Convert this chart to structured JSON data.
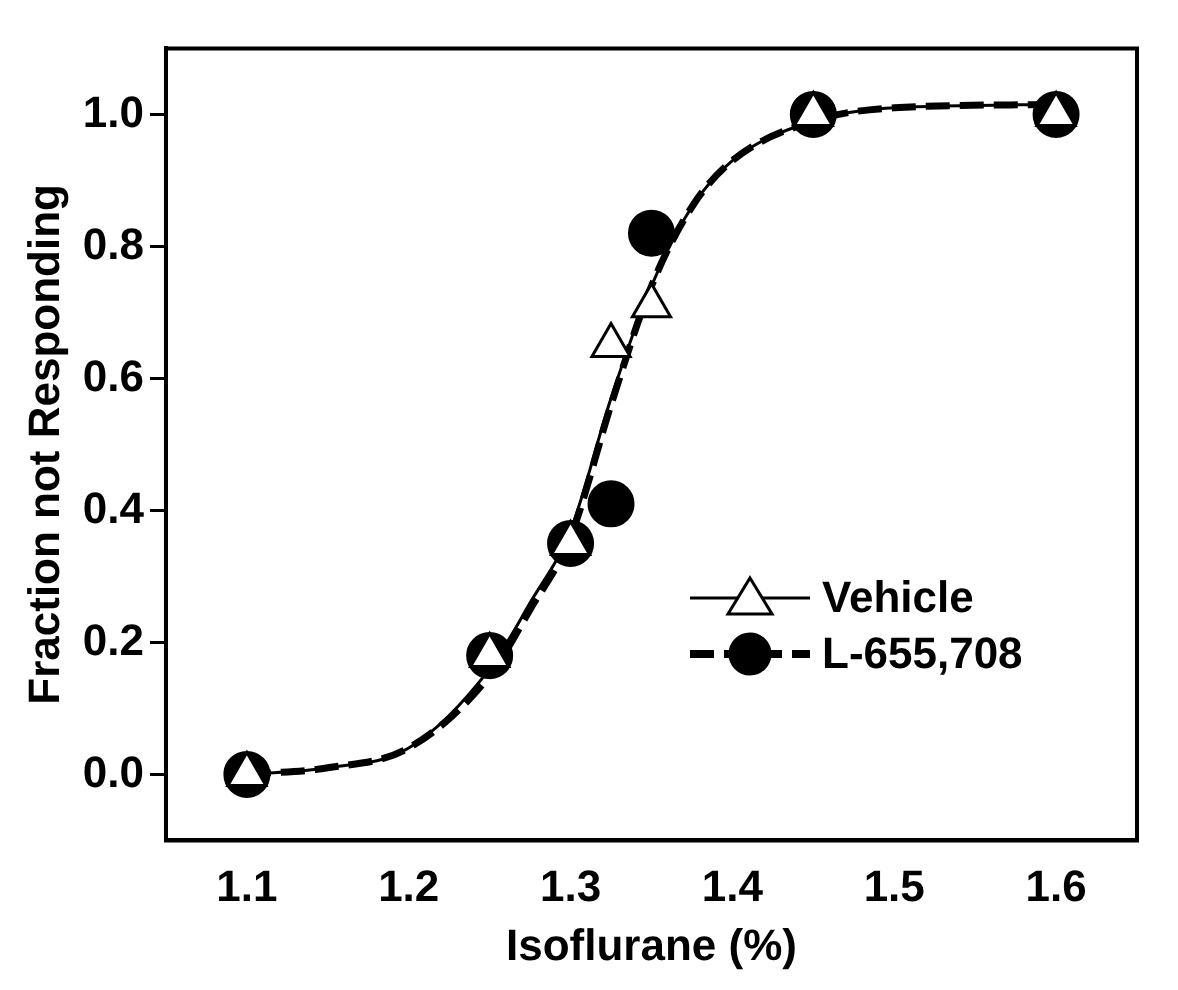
{
  "chart_data": {
    "type": "scatter",
    "xlabel": "Isoflurane (%)",
    "ylabel": "Fraction not Responding",
    "xlim": [
      1.05,
      1.65
    ],
    "xticks": [
      1.1,
      1.2,
      1.3,
      1.4,
      1.5,
      1.6
    ],
    "ylim": [
      -0.1,
      1.1
    ],
    "yticks": [
      {
        "value": 0,
        "label": "0.0"
      },
      0.2,
      0.4,
      0.6,
      0.8,
      {
        "value": 1,
        "label": "1.0"
      }
    ],
    "grid": false,
    "legend": "bottom right",
    "series": [
      {
        "name": "Vehicle",
        "color": "#ffffff",
        "marker": "triangle",
        "line_style": "solid",
        "x": [
          1.1,
          1.25,
          1.3,
          1.325,
          1.35,
          1.45,
          1.6
        ],
        "values": [
          0.0,
          0.18,
          0.35,
          0.65,
          0.71,
          1.0,
          1.0
        ]
      },
      {
        "name": "L-655,708",
        "color": "#000000",
        "marker": "circle",
        "line_style": "dashed",
        "x": [
          1.1,
          1.25,
          1.3,
          1.325,
          1.35,
          1.45,
          1.6
        ],
        "values": [
          0.0,
          0.18,
          0.35,
          0.41,
          0.82,
          1.0,
          1.0
        ]
      },
      {
        "type": "line",
        "color": "#000000",
        "marker": "none",
        "line_style": "solid",
        "x": [
          1.1,
          1.15,
          1.2,
          1.25,
          1.275,
          1.3,
          1.325,
          1.35,
          1.375,
          1.4,
          1.45,
          1.5,
          1.6
        ],
        "values": [
          0.0,
          0.01,
          0.04,
          0.16,
          0.26,
          0.37,
          0.57,
          0.74,
          0.86,
          0.93,
          0.99,
          1.01,
          1.015
        ]
      },
      {
        "type": "line",
        "color": "#000000",
        "marker": "none",
        "line_style": "dashed",
        "x": [
          1.1,
          1.15,
          1.2,
          1.25,
          1.275,
          1.3,
          1.325,
          1.35,
          1.375,
          1.4,
          1.45,
          1.5,
          1.6
        ],
        "values": [
          0.0,
          0.01,
          0.04,
          0.15,
          0.25,
          0.36,
          0.56,
          0.74,
          0.86,
          0.93,
          0.99,
          1.01,
          1.015
        ]
      }
    ]
  }
}
